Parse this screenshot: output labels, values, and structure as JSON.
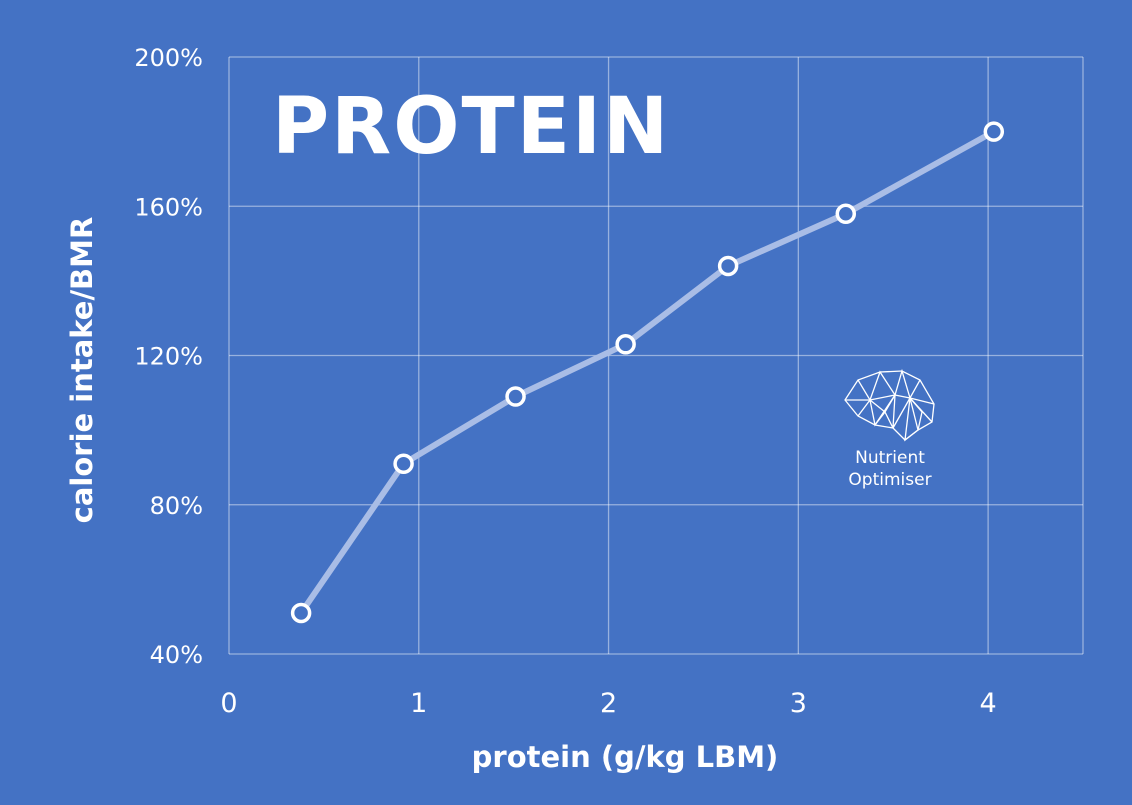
{
  "chart_data": {
    "type": "line",
    "title": "PROTEIN",
    "xlabel": "protein (g/kg LBM)",
    "ylabel": "calorie intake/BMR",
    "x": [
      0.38,
      0.92,
      1.51,
      2.09,
      2.63,
      3.25,
      4.03
    ],
    "y": [
      51,
      91,
      109,
      123,
      144,
      158,
      180
    ],
    "xlim": [
      0,
      4.5
    ],
    "ylim": [
      40,
      200
    ],
    "xticks": [
      "0",
      "1",
      "2",
      "3",
      "4"
    ],
    "yticks": [
      "40%",
      "80%",
      "120%",
      "160%",
      "200%"
    ],
    "grid": true,
    "colors": {
      "background": "#4472C4",
      "line": "#A9BDE6",
      "marker_stroke": "#FFFFFF"
    }
  },
  "logo": {
    "line1": "Nutrient",
    "line2": "Optimiser"
  }
}
